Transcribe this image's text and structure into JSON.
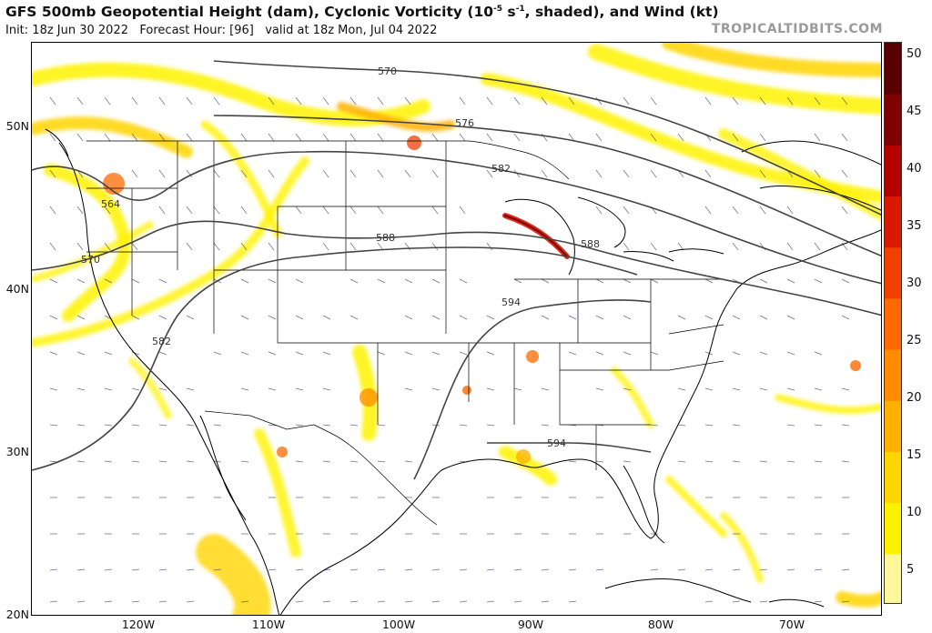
{
  "header": {
    "title_main": "GFS 500mb Geopotential Height (dam), Cyclonic Vorticity (10",
    "title_sup": "-5",
    "title_mid": " s",
    "title_sup2": "-1",
    "title_end": ", shaded), and Wind (kt)",
    "subtitle": "Init: 18z Jun 30 2022   Forecast Hour: [96]   valid at 18z Mon, Jul 04 2022",
    "brand": "TROPICALTIDBITS.COM"
  },
  "axes": {
    "lat_labels": [
      "50N",
      "40N",
      "30N",
      "20N"
    ],
    "lon_labels": [
      "120W",
      "110W",
      "100W",
      "90W",
      "80W",
      "70W"
    ]
  },
  "contour_labels": [
    "570",
    "576",
    "582",
    "564",
    "570",
    "588",
    "588",
    "582",
    "594",
    "594"
  ],
  "colorbar": {
    "labels": [
      "50",
      "45",
      "40",
      "35",
      "30",
      "25",
      "20",
      "15",
      "10",
      "5"
    ],
    "colors": [
      "#fff799",
      "#fff200",
      "#ffd500",
      "#ffb000",
      "#ff8c00",
      "#ff6a00",
      "#f24000",
      "#d91a00",
      "#b30000",
      "#800000",
      "#5a0000"
    ]
  }
}
